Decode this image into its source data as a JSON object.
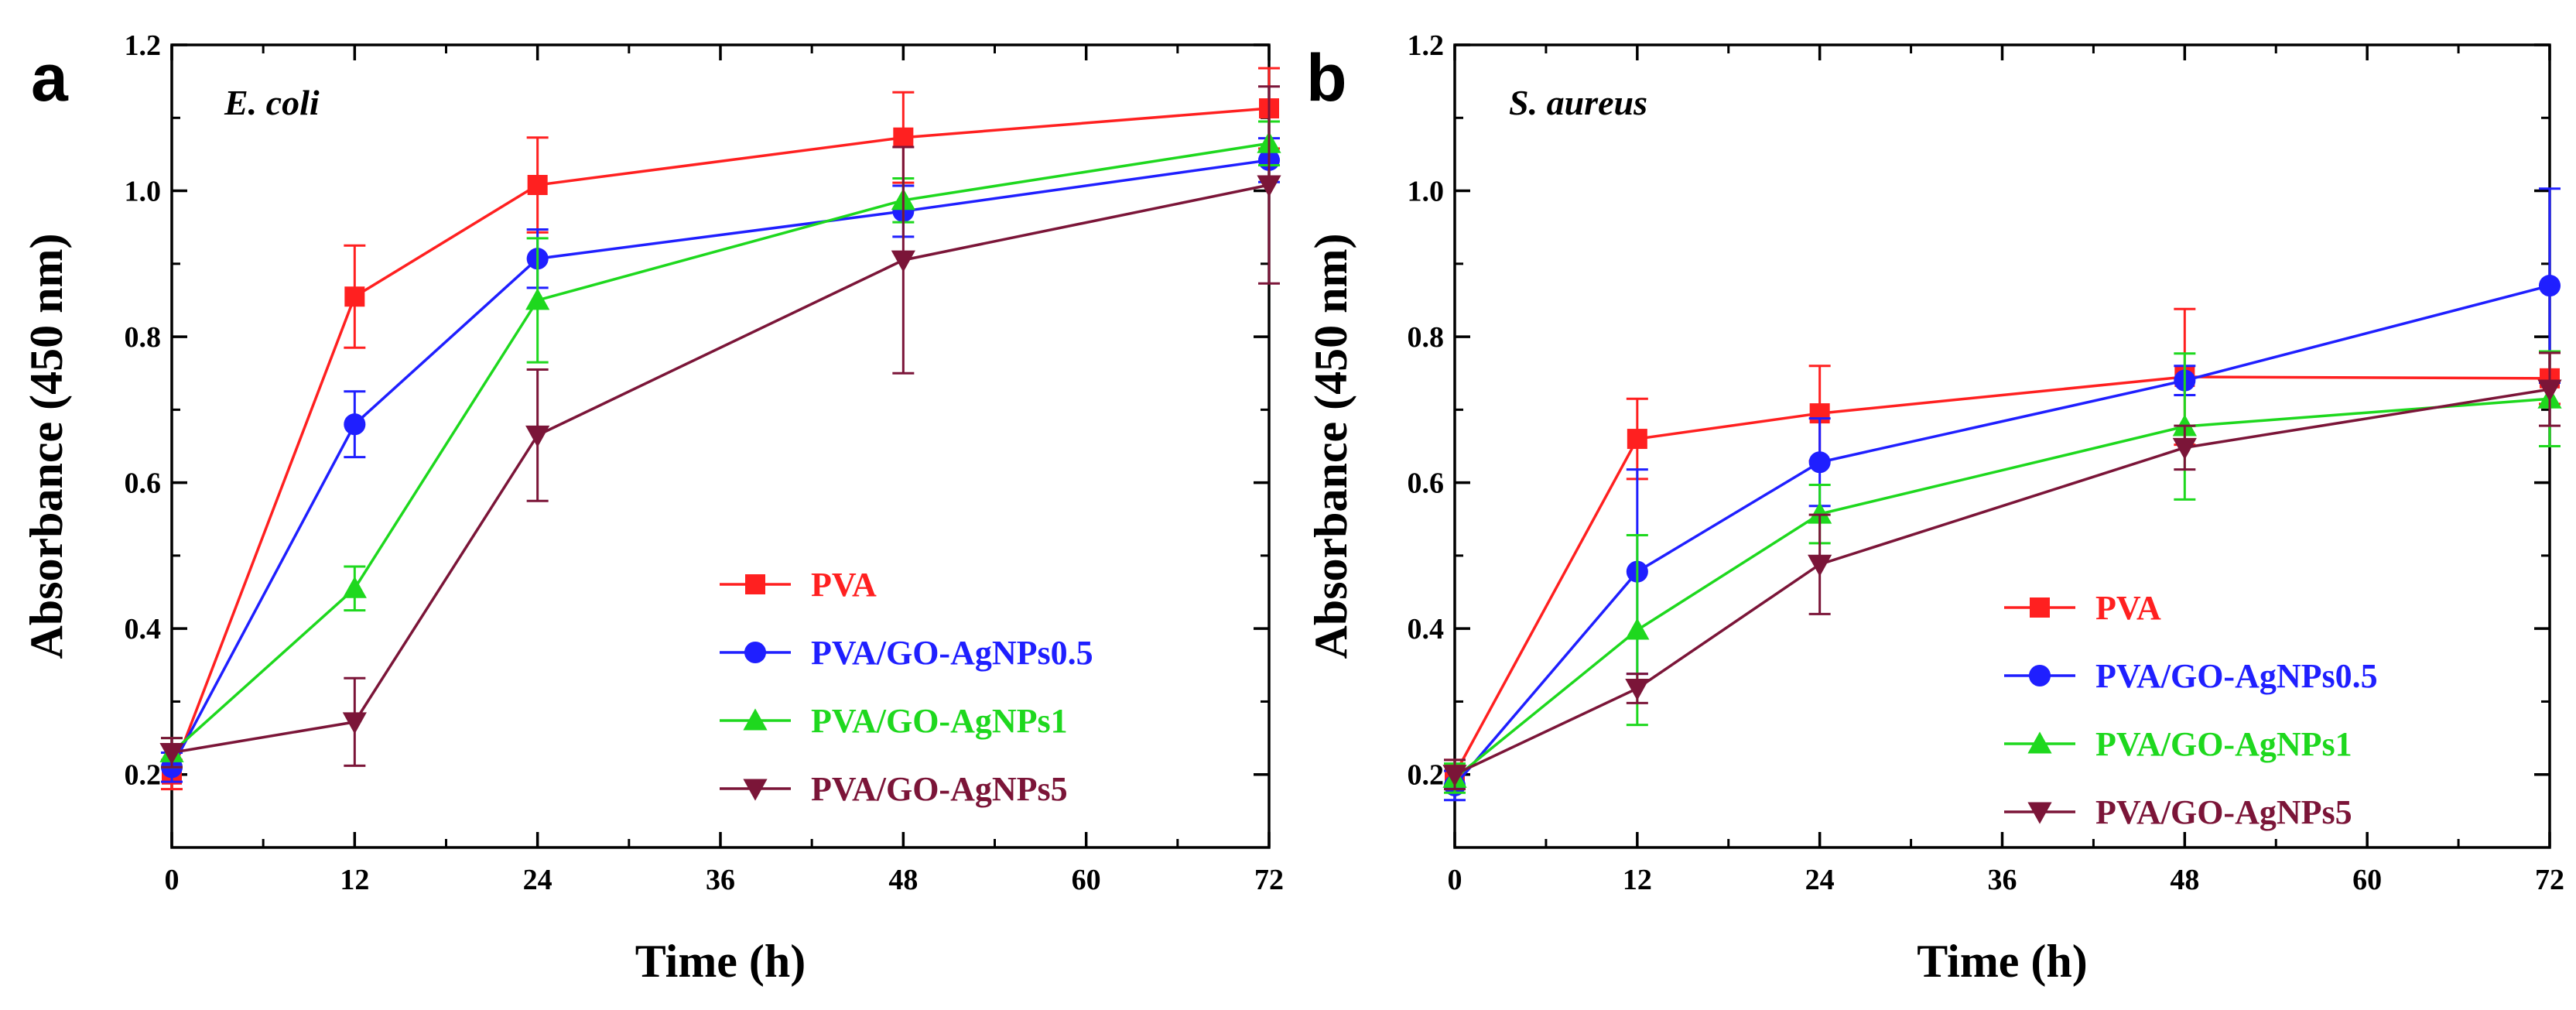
{
  "chart_data": [
    {
      "type": "line",
      "panel_label": "a",
      "organism": "E. coli",
      "xlabel": "Time (h)",
      "ylabel": "Absorbance (450 nm)",
      "xlim": [
        0,
        72
      ],
      "ylim": [
        0.1,
        1.2
      ],
      "xticks": [
        "0",
        "12",
        "24",
        "36",
        "48",
        "60",
        "72"
      ],
      "yticks": [
        "0.2",
        "0.4",
        "0.6",
        "0.8",
        "1.0",
        "1.2"
      ],
      "x": [
        0,
        12,
        24,
        48,
        72
      ],
      "legend_position": "lower-right",
      "series": [
        {
          "name": "PVA",
          "color": "#ff2020",
          "marker": "square",
          "values": [
            0.2,
            0.855,
            1.008,
            1.073,
            1.113
          ],
          "errors": [
            0.02,
            0.07,
            0.065,
            0.062,
            0.055
          ]
        },
        {
          "name": "PVA/GO-AgNPs0.5",
          "color": "#1f1fff",
          "marker": "circle",
          "values": [
            0.21,
            0.68,
            0.907,
            0.972,
            1.042
          ],
          "errors": [
            0.02,
            0.045,
            0.04,
            0.035,
            0.03
          ]
        },
        {
          "name": "PVA/GO-AgNPs1",
          "color": "#1ed81e",
          "marker": "triangle-up",
          "values": [
            0.23,
            0.455,
            0.85,
            0.987,
            1.065
          ],
          "errors": [
            0.02,
            0.03,
            0.085,
            0.03,
            0.03
          ]
        },
        {
          "name": "PVA/GO-AgNPs5",
          "color": "#7b1538",
          "marker": "triangle-down",
          "values": [
            0.23,
            0.272,
            0.665,
            0.905,
            1.008
          ],
          "errors": [
            0.02,
            0.06,
            0.09,
            0.155,
            0.135
          ]
        }
      ]
    },
    {
      "type": "line",
      "panel_label": "b",
      "organism": "S. aureus",
      "xlabel": "Time (h)",
      "ylabel": "Absorbance (450 nm)",
      "xlim": [
        0,
        72
      ],
      "ylim": [
        0.1,
        1.2
      ],
      "xticks": [
        "0",
        "12",
        "24",
        "36",
        "48",
        "60",
        "72"
      ],
      "yticks": [
        "0.2",
        "0.4",
        "0.6",
        "0.8",
        "1.0",
        "1.2"
      ],
      "x": [
        0,
        12,
        24,
        48,
        72
      ],
      "legend_position": "lower-right",
      "series": [
        {
          "name": "PVA",
          "color": "#ff2020",
          "marker": "square",
          "values": [
            0.2,
            0.66,
            0.695,
            0.745,
            0.743
          ],
          "errors": [
            0.02,
            0.055,
            0.065,
            0.093,
            0.035
          ]
        },
        {
          "name": "PVA/GO-AgNPs0.5",
          "color": "#1f1fff",
          "marker": "circle",
          "values": [
            0.185,
            0.478,
            0.628,
            0.74,
            0.87
          ],
          "errors": [
            0.02,
            0.14,
            0.06,
            0.02,
            0.133
          ]
        },
        {
          "name": "PVA/GO-AgNPs1",
          "color": "#1ed81e",
          "marker": "triangle-up",
          "values": [
            0.195,
            0.398,
            0.557,
            0.677,
            0.715
          ],
          "errors": [
            0.02,
            0.13,
            0.04,
            0.1,
            0.065
          ]
        },
        {
          "name": "PVA/GO-AgNPs5",
          "color": "#7b1538",
          "marker": "triangle-down",
          "values": [
            0.2,
            0.318,
            0.488,
            0.648,
            0.728
          ],
          "errors": [
            0.02,
            0.02,
            0.068,
            0.03,
            0.05
          ]
        }
      ]
    }
  ]
}
